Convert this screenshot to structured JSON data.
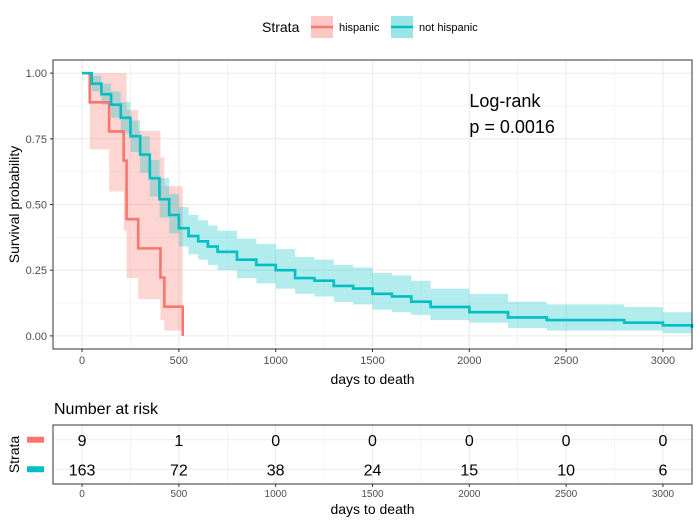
{
  "legend": {
    "title": "Strata",
    "items": [
      "hispanic",
      "not hispanic"
    ]
  },
  "colors": {
    "hispanic": "#F8766D",
    "not_hispanic": "#00BFC4",
    "panel_border": "#333333",
    "grid": "#EBEBEB",
    "text": "#000000",
    "tick_text": "#4D4D4D"
  },
  "annotation": {
    "line1": "Log-rank",
    "line2": "p = 0.0016"
  },
  "chart_data": [
    {
      "type": "line",
      "subtype": "kaplan-meier step curves with confidence bands",
      "xlabel": "days to death",
      "ylabel": "Survival probability",
      "xlim": [
        -150,
        3150
      ],
      "ylim": [
        -0.05,
        1.05
      ],
      "xticks": [
        0,
        500,
        1000,
        1500,
        2000,
        2500,
        3000
      ],
      "yticks": [
        0.0,
        0.25,
        0.5,
        0.75,
        1.0
      ],
      "ytick_labels": [
        "0.00",
        "0.25",
        "0.50",
        "0.75",
        "1.00"
      ],
      "grid": true,
      "legend_position": "top",
      "series": [
        {
          "name": "hispanic",
          "x": [
            0,
            40,
            140,
            215,
            230,
            290,
            405,
            425,
            520
          ],
          "y": [
            1.0,
            0.889,
            0.778,
            0.667,
            0.444,
            0.333,
            0.222,
            0.111,
            0.0
          ],
          "lower": [
            1.0,
            0.71,
            0.55,
            0.4,
            0.22,
            0.14,
            0.06,
            0.02,
            0.0
          ],
          "upper": [
            1.0,
            1.0,
            1.0,
            1.0,
            0.86,
            0.78,
            0.68,
            0.57,
            0.0
          ]
        },
        {
          "name": "not hispanic",
          "x": [
            0,
            50,
            100,
            150,
            200,
            250,
            300,
            350,
            400,
            450,
            500,
            550,
            600,
            650,
            700,
            800,
            900,
            1000,
            1100,
            1200,
            1300,
            1400,
            1500,
            1600,
            1700,
            1800,
            2000,
            2200,
            2400,
            2600,
            2800,
            3000,
            3150
          ],
          "y": [
            1.0,
            0.96,
            0.92,
            0.88,
            0.83,
            0.76,
            0.69,
            0.6,
            0.52,
            0.46,
            0.41,
            0.38,
            0.36,
            0.34,
            0.32,
            0.29,
            0.27,
            0.25,
            0.22,
            0.21,
            0.19,
            0.18,
            0.16,
            0.15,
            0.13,
            0.11,
            0.09,
            0.07,
            0.06,
            0.06,
            0.05,
            0.04,
            0.03
          ],
          "lower": [
            1.0,
            0.93,
            0.88,
            0.83,
            0.77,
            0.7,
            0.62,
            0.53,
            0.45,
            0.39,
            0.34,
            0.31,
            0.29,
            0.27,
            0.25,
            0.22,
            0.2,
            0.18,
            0.16,
            0.15,
            0.13,
            0.12,
            0.1,
            0.09,
            0.08,
            0.06,
            0.05,
            0.03,
            0.02,
            0.02,
            0.02,
            0.01,
            0.01
          ],
          "upper": [
            1.0,
            0.99,
            0.96,
            0.93,
            0.89,
            0.82,
            0.76,
            0.67,
            0.6,
            0.54,
            0.49,
            0.46,
            0.44,
            0.42,
            0.4,
            0.37,
            0.35,
            0.33,
            0.3,
            0.29,
            0.27,
            0.26,
            0.24,
            0.23,
            0.21,
            0.18,
            0.16,
            0.13,
            0.12,
            0.12,
            0.11,
            0.09,
            0.07
          ]
        }
      ]
    },
    {
      "type": "table",
      "title": "Number at risk",
      "ylabel": "Strata",
      "xlabel": "days to death",
      "x": [
        0,
        500,
        1000,
        1500,
        2000,
        2500,
        3000
      ],
      "rows": [
        {
          "name": "hispanic",
          "values": [
            9,
            1,
            0,
            0,
            0,
            0,
            0
          ]
        },
        {
          "name": "not hispanic",
          "values": [
            163,
            72,
            38,
            24,
            15,
            10,
            6
          ]
        }
      ]
    }
  ]
}
